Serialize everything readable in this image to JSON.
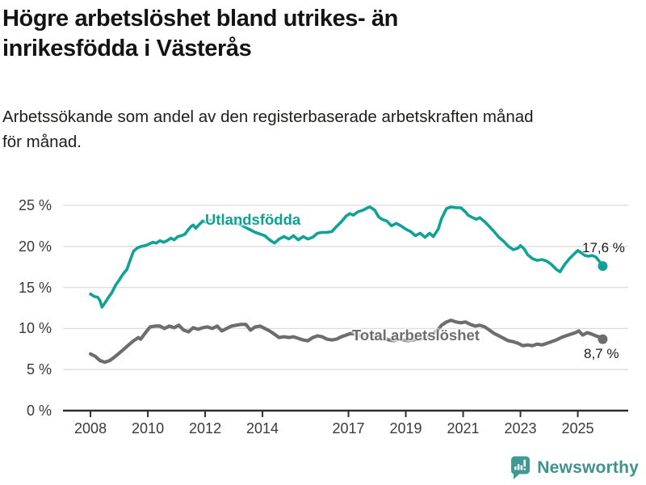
{
  "header": {
    "title_line1": "Högre arbetslöshet bland utrikes- än",
    "title_line2": "inrikesfödda i Västerås",
    "subtitle_line1": "Arbetssökande som andel av den registerbaserade arbetskraften månad",
    "subtitle_line2": "för månad."
  },
  "chart_data": {
    "type": "line",
    "title": "Högre arbetslöshet bland utrikes- än inrikesfödda i Västerås",
    "xlabel": "",
    "ylabel": "",
    "grid": true,
    "legend_position": "inline-labels",
    "xlim": [
      2007.04,
      2026.76
    ],
    "ylim": [
      0,
      25
    ],
    "x_ticks": [
      {
        "value": 2008,
        "label": "2008"
      },
      {
        "value": 2010,
        "label": "2010"
      },
      {
        "value": 2012,
        "label": "2012"
      },
      {
        "value": 2014,
        "label": "2014"
      },
      {
        "value": 2017,
        "label": "2017"
      },
      {
        "value": 2019,
        "label": "2019"
      },
      {
        "value": 2021,
        "label": "2021"
      },
      {
        "value": 2023,
        "label": "2023"
      },
      {
        "value": 2025,
        "label": "2025"
      }
    ],
    "y_ticks": [
      {
        "value": 0,
        "label": "0 %"
      },
      {
        "value": 5,
        "label": "5 %"
      },
      {
        "value": 10,
        "label": "10 %"
      },
      {
        "value": 15,
        "label": "15 %"
      },
      {
        "value": 20,
        "label": "20 %"
      },
      {
        "value": 25,
        "label": "25 %"
      }
    ],
    "series": [
      {
        "name": "Utlandsfödda",
        "color": "#0fa295",
        "end_label": "17,6 %",
        "end_value": 17.6,
        "points": [
          [
            2008.0,
            14.2
          ],
          [
            2008.13,
            13.9
          ],
          [
            2008.25,
            13.8
          ],
          [
            2008.33,
            13.4
          ],
          [
            2008.4,
            12.6
          ],
          [
            2008.5,
            13.1
          ],
          [
            2008.63,
            13.8
          ],
          [
            2008.75,
            14.4
          ],
          [
            2008.88,
            15.3
          ],
          [
            2009.0,
            15.9
          ],
          [
            2009.13,
            16.6
          ],
          [
            2009.27,
            17.2
          ],
          [
            2009.38,
            18.3
          ],
          [
            2009.5,
            19.4
          ],
          [
            2009.63,
            19.8
          ],
          [
            2009.77,
            20.0
          ],
          [
            2009.92,
            20.1
          ],
          [
            2010.05,
            20.3
          ],
          [
            2010.17,
            20.5
          ],
          [
            2010.3,
            20.4
          ],
          [
            2010.42,
            20.7
          ],
          [
            2010.55,
            20.5
          ],
          [
            2010.68,
            20.7
          ],
          [
            2010.8,
            21.0
          ],
          [
            2010.92,
            20.8
          ],
          [
            2011.05,
            21.2
          ],
          [
            2011.17,
            21.3
          ],
          [
            2011.3,
            21.5
          ],
          [
            2011.4,
            22.0
          ],
          [
            2011.5,
            22.4
          ],
          [
            2011.58,
            22.6
          ],
          [
            2011.67,
            22.2
          ],
          [
            2011.8,
            22.7
          ],
          [
            2011.92,
            23.1
          ],
          [
            2012.05,
            22.9
          ],
          [
            2012.17,
            23.2
          ],
          [
            2012.3,
            23.0
          ],
          [
            2012.42,
            23.3
          ],
          [
            2012.58,
            23.1
          ],
          [
            2012.75,
            22.9
          ],
          [
            2012.92,
            23.1
          ],
          [
            2013.08,
            22.9
          ],
          [
            2013.25,
            22.6
          ],
          [
            2013.42,
            22.3
          ],
          [
            2013.58,
            22.0
          ],
          [
            2013.75,
            21.7
          ],
          [
            2013.92,
            21.5
          ],
          [
            2014.08,
            21.3
          ],
          [
            2014.25,
            20.8
          ],
          [
            2014.42,
            20.4
          ],
          [
            2014.58,
            20.9
          ],
          [
            2014.75,
            21.2
          ],
          [
            2014.92,
            20.9
          ],
          [
            2015.08,
            21.3
          ],
          [
            2015.25,
            20.8
          ],
          [
            2015.42,
            21.2
          ],
          [
            2015.58,
            20.9
          ],
          [
            2015.75,
            21.1
          ],
          [
            2015.92,
            21.6
          ],
          [
            2016.08,
            21.7
          ],
          [
            2016.25,
            21.7
          ],
          [
            2016.42,
            21.8
          ],
          [
            2016.58,
            22.4
          ],
          [
            2016.75,
            23.0
          ],
          [
            2016.92,
            23.7
          ],
          [
            2017.05,
            24.0
          ],
          [
            2017.17,
            23.8
          ],
          [
            2017.33,
            24.2
          ],
          [
            2017.5,
            24.4
          ],
          [
            2017.67,
            24.7
          ],
          [
            2017.75,
            24.8
          ],
          [
            2017.92,
            24.4
          ],
          [
            2018.05,
            23.6
          ],
          [
            2018.17,
            23.3
          ],
          [
            2018.33,
            23.1
          ],
          [
            2018.5,
            22.5
          ],
          [
            2018.67,
            22.8
          ],
          [
            2018.83,
            22.5
          ],
          [
            2019.0,
            22.1
          ],
          [
            2019.17,
            21.8
          ],
          [
            2019.33,
            21.3
          ],
          [
            2019.5,
            21.6
          ],
          [
            2019.67,
            21.1
          ],
          [
            2019.83,
            21.6
          ],
          [
            2019.96,
            21.2
          ],
          [
            2020.13,
            22.1
          ],
          [
            2020.25,
            23.4
          ],
          [
            2020.42,
            24.6
          ],
          [
            2020.58,
            24.8
          ],
          [
            2020.75,
            24.7
          ],
          [
            2020.92,
            24.7
          ],
          [
            2021.08,
            24.2
          ],
          [
            2021.17,
            23.8
          ],
          [
            2021.33,
            23.5
          ],
          [
            2021.46,
            23.3
          ],
          [
            2021.58,
            23.5
          ],
          [
            2021.75,
            23.0
          ],
          [
            2021.92,
            22.4
          ],
          [
            2022.08,
            21.8
          ],
          [
            2022.25,
            21.1
          ],
          [
            2022.42,
            20.6
          ],
          [
            2022.58,
            20.0
          ],
          [
            2022.75,
            19.6
          ],
          [
            2022.92,
            19.8
          ],
          [
            2023.0,
            20.1
          ],
          [
            2023.13,
            19.7
          ],
          [
            2023.25,
            19.0
          ],
          [
            2023.42,
            18.5
          ],
          [
            2023.58,
            18.3
          ],
          [
            2023.75,
            18.4
          ],
          [
            2023.92,
            18.2
          ],
          [
            2024.08,
            17.8
          ],
          [
            2024.25,
            17.2
          ],
          [
            2024.38,
            16.9
          ],
          [
            2024.54,
            17.8
          ],
          [
            2024.71,
            18.5
          ],
          [
            2024.88,
            19.1
          ],
          [
            2025.0,
            19.5
          ],
          [
            2025.13,
            19.2
          ],
          [
            2025.25,
            18.9
          ],
          [
            2025.38,
            18.8
          ],
          [
            2025.5,
            18.9
          ],
          [
            2025.63,
            18.7
          ],
          [
            2025.75,
            18.2
          ],
          [
            2025.87,
            17.6
          ]
        ]
      },
      {
        "name": "Total arbetslöshet",
        "color": "#6d6d6d",
        "end_label": "8,7 %",
        "end_value": 8.7,
        "points": [
          [
            2008.0,
            6.9
          ],
          [
            2008.17,
            6.6
          ],
          [
            2008.33,
            6.1
          ],
          [
            2008.5,
            5.9
          ],
          [
            2008.67,
            6.1
          ],
          [
            2008.83,
            6.5
          ],
          [
            2009.0,
            7.0
          ],
          [
            2009.17,
            7.5
          ],
          [
            2009.33,
            8.0
          ],
          [
            2009.5,
            8.5
          ],
          [
            2009.67,
            8.9
          ],
          [
            2009.75,
            8.7
          ],
          [
            2009.92,
            9.5
          ],
          [
            2010.08,
            10.2
          ],
          [
            2010.25,
            10.3
          ],
          [
            2010.42,
            10.3
          ],
          [
            2010.58,
            10.0
          ],
          [
            2010.75,
            10.3
          ],
          [
            2010.92,
            10.1
          ],
          [
            2011.08,
            10.4
          ],
          [
            2011.25,
            9.8
          ],
          [
            2011.42,
            9.6
          ],
          [
            2011.58,
            10.1
          ],
          [
            2011.75,
            9.9
          ],
          [
            2011.92,
            10.1
          ],
          [
            2012.08,
            10.2
          ],
          [
            2012.25,
            10.0
          ],
          [
            2012.42,
            10.3
          ],
          [
            2012.58,
            9.7
          ],
          [
            2012.75,
            10.0
          ],
          [
            2012.92,
            10.3
          ],
          [
            2013.08,
            10.4
          ],
          [
            2013.25,
            10.5
          ],
          [
            2013.42,
            10.5
          ],
          [
            2013.58,
            9.8
          ],
          [
            2013.75,
            10.2
          ],
          [
            2013.92,
            10.3
          ],
          [
            2014.08,
            10.0
          ],
          [
            2014.25,
            9.7
          ],
          [
            2014.42,
            9.3
          ],
          [
            2014.58,
            8.9
          ],
          [
            2014.75,
            9.0
          ],
          [
            2014.92,
            8.9
          ],
          [
            2015.08,
            9.0
          ],
          [
            2015.25,
            8.8
          ],
          [
            2015.42,
            8.6
          ],
          [
            2015.58,
            8.5
          ],
          [
            2015.75,
            8.9
          ],
          [
            2015.92,
            9.1
          ],
          [
            2016.08,
            9.0
          ],
          [
            2016.25,
            8.7
          ],
          [
            2016.42,
            8.6
          ],
          [
            2016.58,
            8.7
          ],
          [
            2016.75,
            9.0
          ],
          [
            2016.92,
            9.2
          ],
          [
            2017.08,
            9.4
          ],
          [
            2017.25,
            9.3
          ],
          [
            2017.42,
            9.1
          ],
          [
            2017.58,
            9.0
          ],
          [
            2017.75,
            9.2
          ],
          [
            2017.92,
            9.1
          ],
          [
            2018.08,
            9.0
          ],
          [
            2018.25,
            8.8
          ],
          [
            2018.42,
            8.6
          ],
          [
            2018.58,
            8.5
          ],
          [
            2018.75,
            8.7
          ],
          [
            2018.92,
            8.6
          ],
          [
            2019.08,
            8.5
          ],
          [
            2019.25,
            8.6
          ],
          [
            2019.42,
            8.7
          ],
          [
            2019.58,
            8.8
          ],
          [
            2019.75,
            9.0
          ],
          [
            2019.92,
            9.3
          ],
          [
            2020.08,
            9.7
          ],
          [
            2020.25,
            10.4
          ],
          [
            2020.42,
            10.8
          ],
          [
            2020.58,
            11.0
          ],
          [
            2020.75,
            10.8
          ],
          [
            2020.92,
            10.7
          ],
          [
            2021.08,
            10.8
          ],
          [
            2021.25,
            10.5
          ],
          [
            2021.42,
            10.3
          ],
          [
            2021.58,
            10.4
          ],
          [
            2021.75,
            10.2
          ],
          [
            2021.92,
            9.8
          ],
          [
            2022.08,
            9.4
          ],
          [
            2022.25,
            9.1
          ],
          [
            2022.42,
            8.8
          ],
          [
            2022.58,
            8.5
          ],
          [
            2022.75,
            8.4
          ],
          [
            2022.92,
            8.2
          ],
          [
            2023.08,
            7.9
          ],
          [
            2023.25,
            8.0
          ],
          [
            2023.42,
            7.9
          ],
          [
            2023.58,
            8.1
          ],
          [
            2023.75,
            8.0
          ],
          [
            2023.92,
            8.2
          ],
          [
            2024.08,
            8.4
          ],
          [
            2024.25,
            8.6
          ],
          [
            2024.42,
            8.9
          ],
          [
            2024.58,
            9.1
          ],
          [
            2024.75,
            9.3
          ],
          [
            2024.92,
            9.5
          ],
          [
            2025.04,
            9.7
          ],
          [
            2025.17,
            9.2
          ],
          [
            2025.33,
            9.5
          ],
          [
            2025.5,
            9.3
          ],
          [
            2025.63,
            9.1
          ],
          [
            2025.75,
            9.0
          ],
          [
            2025.87,
            8.7
          ]
        ]
      }
    ],
    "colors": {
      "grid": "#dcdcdc",
      "axis": "#2f2f2f",
      "tick_text": "#3a3a3a"
    }
  },
  "footer": {
    "brand": "Newsworthy",
    "brand_color": "#3f918d",
    "icon_color": "#3d9b94",
    "icon": "bar-chart-speech-bubble"
  }
}
